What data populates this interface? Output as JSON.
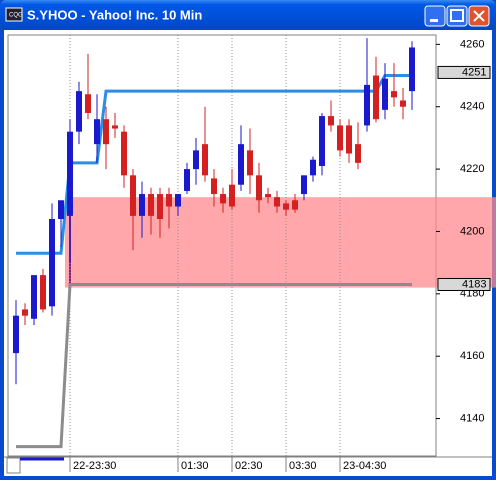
{
  "window": {
    "title": "S.YHOO - Yahoo! Inc. 10 Min"
  },
  "chart_data": {
    "type": "candlestick",
    "categories": [
      null,
      null,
      null,
      null,
      null,
      null,
      "22-23:30",
      null,
      null,
      null,
      null,
      null,
      null,
      null,
      null,
      null,
      null,
      null,
      "01:30",
      null,
      null,
      null,
      null,
      null,
      "02:30",
      null,
      null,
      null,
      null,
      null,
      "03:30",
      null,
      null,
      null,
      null,
      null,
      "23-04:30",
      null,
      null,
      null,
      null,
      null,
      null,
      null,
      null
    ],
    "open": [
      4161,
      4175,
      4172,
      4186,
      4176,
      4204,
      4205,
      4232,
      4244,
      4228,
      4236,
      4234,
      4232,
      4218,
      4205,
      4212,
      4212,
      4212,
      4208,
      4213,
      4220,
      4228,
      4217,
      4212,
      4215,
      4215,
      4226,
      4218,
      4212,
      4211,
      4209,
      4210,
      4212,
      4218,
      4221,
      4237,
      4234,
      4234,
      4228,
      4234,
      4250,
      4239,
      4245,
      4242,
      4245
    ],
    "high": [
      4178,
      4177,
      4186,
      4188,
      4209,
      4210,
      4236,
      4248,
      4257,
      4244,
      4240,
      4238,
      4234,
      4220,
      4216,
      4214,
      4214,
      4214,
      4212,
      4222,
      4230,
      4240,
      4220,
      4214,
      4220,
      4234,
      4233,
      4222,
      4214,
      4213,
      4210,
      4212,
      4218,
      4224,
      4238,
      4242,
      4236,
      4236,
      4235,
      4262,
      4256,
      4254,
      4254,
      4246,
      4261
    ],
    "low": [
      4151,
      4170,
      4170,
      4174,
      4173,
      4195,
      4190,
      4228,
      4236,
      4222,
      4220,
      4230,
      4214,
      4194,
      4198,
      4199,
      4198,
      4201,
      4205,
      4212,
      4215,
      4216,
      4208,
      4206,
      4207,
      4213,
      4212,
      4206,
      4209,
      4206,
      4205,
      4206,
      4210,
      4216,
      4218,
      4232,
      4224,
      4222,
      4220,
      4232,
      4235,
      4236,
      4240,
      4236,
      4239
    ],
    "close": [
      4173,
      4173,
      4186,
      4175,
      4204,
      4210,
      4232,
      4245,
      4238,
      4236,
      4228,
      4233,
      4218,
      4205,
      4212,
      4205,
      4204,
      4208,
      4212,
      4220,
      4226,
      4218,
      4212,
      4209,
      4208,
      4228,
      4218,
      4210,
      4211,
      4208,
      4207,
      4207,
      4218,
      4223,
      4237,
      4234,
      4226,
      4225,
      4222,
      4247,
      4236,
      4249,
      4243,
      4240,
      4259
    ],
    "up_color": "#1a1acc",
    "down_color": "#d42020",
    "lines": [
      {
        "color": "#2b8ee6",
        "values": [
          4193,
          4193,
          4193,
          4193,
          4193,
          4193,
          4222,
          4222,
          4222,
          4222,
          4245,
          4245,
          4245,
          4245,
          4245,
          4245,
          4245,
          4245,
          4245,
          4245,
          4245,
          4245,
          4245,
          4245,
          4245,
          4245,
          4245,
          4245,
          4245,
          4245,
          4245,
          4245,
          4245,
          4245,
          4245,
          4245,
          4245,
          4245,
          4245,
          4245,
          4245,
          4250,
          4250,
          4250,
          4250
        ]
      },
      {
        "color": "#8c8c8c",
        "values": [
          4131,
          4131,
          4131,
          4131,
          4131,
          4131,
          4183,
          4183,
          4183,
          4183,
          4183,
          4183,
          4183,
          4183,
          4183,
          4183,
          4183,
          4183,
          4183,
          4183,
          4183,
          4183,
          4183,
          4183,
          4183,
          4183,
          4183,
          4183,
          4183,
          4183,
          4183,
          4183,
          4183,
          4183,
          4183,
          4183,
          4183,
          4183,
          4183,
          4183,
          4183,
          4183,
          4183,
          4183,
          4183
        ]
      }
    ],
    "zone": {
      "from": 4182,
      "to": 4211,
      "color": "#ff8a8f"
    },
    "price_labels": [
      4251,
      4183
    ],
    "ylim": [
      4128,
      4263
    ],
    "yticks": [
      4140,
      4160,
      4180,
      4200,
      4220,
      4240,
      4260
    ],
    "grid": true
  }
}
